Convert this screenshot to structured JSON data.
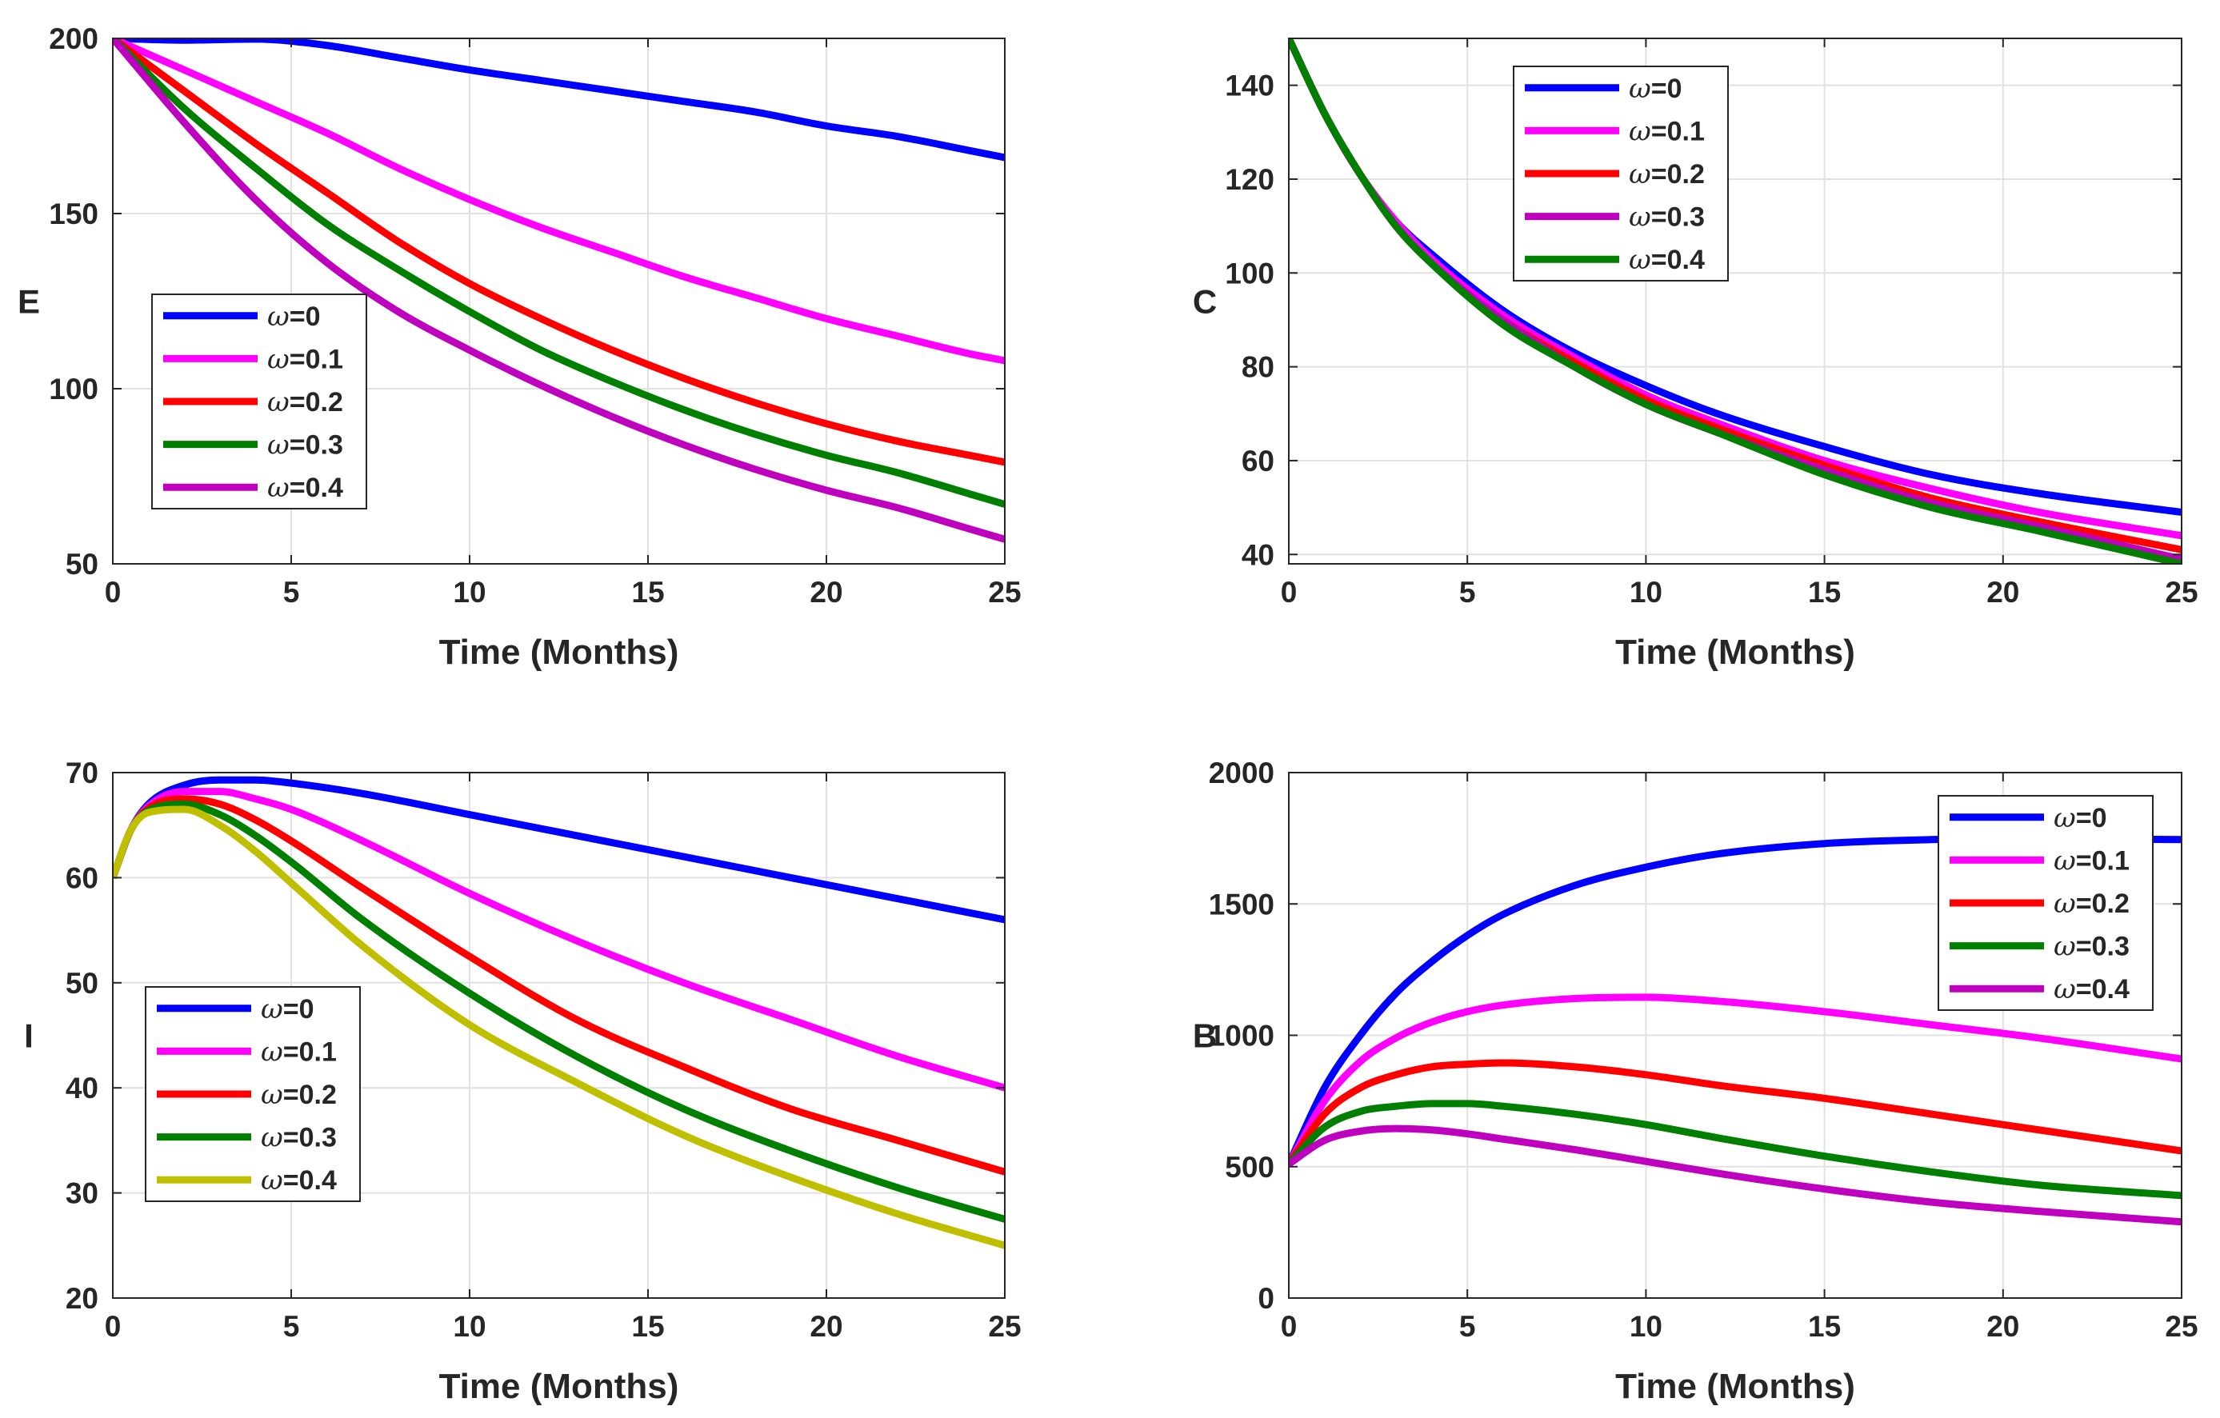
{
  "colors": {
    "blue": "#0000ff",
    "magenta": "#ff00ff",
    "red": "#ff0000",
    "green": "#007f00",
    "purple": "#bf00bf",
    "olive": "#bfbf00",
    "grid": "#e1e1e1",
    "axis": "#262626"
  },
  "chart_data": [
    {
      "type": "line",
      "panel": "top-left",
      "ylabel": "E",
      "xlabel": "Time (Months)",
      "xlim": [
        0,
        25
      ],
      "ylim": [
        50,
        200
      ],
      "xticks": [
        0,
        5,
        10,
        15,
        20,
        25
      ],
      "yticks": [
        50,
        100,
        150,
        200
      ],
      "legend_position": "center-left",
      "series": [
        {
          "name": "ω=0",
          "color": "blue",
          "x": [
            0,
            2,
            4,
            6,
            8,
            10,
            12,
            14,
            16,
            18,
            20,
            22,
            24,
            25
          ],
          "values": [
            200,
            199.5,
            199.8,
            198,
            194.5,
            191,
            188,
            185,
            182,
            179,
            175,
            172,
            168,
            166
          ]
        },
        {
          "name": "ω=0.1",
          "color": "magenta",
          "x": [
            0,
            2,
            4,
            6,
            8,
            10,
            12,
            14,
            16,
            18,
            20,
            22,
            24,
            25
          ],
          "values": [
            200,
            191,
            182,
            173,
            163,
            154,
            146,
            139,
            132,
            126,
            120,
            115,
            110,
            108
          ]
        },
        {
          "name": "ω=0.2",
          "color": "red",
          "x": [
            0,
            2,
            4,
            6,
            8,
            10,
            12,
            14,
            16,
            18,
            20,
            22,
            24,
            25
          ],
          "values": [
            200,
            185,
            170,
            156,
            142,
            130,
            120,
            111,
            103,
            96,
            90,
            85,
            81,
            79
          ]
        },
        {
          "name": "ω=0.3",
          "color": "green",
          "x": [
            0,
            2,
            4,
            6,
            8,
            10,
            12,
            14,
            16,
            18,
            20,
            22,
            24,
            25
          ],
          "values": [
            200,
            180,
            163,
            147,
            134,
            122,
            111,
            102,
            94,
            87,
            81,
            76,
            70,
            67
          ]
        },
        {
          "name": "ω=0.4",
          "color": "purple",
          "x": [
            0,
            2,
            4,
            6,
            8,
            10,
            12,
            14,
            16,
            18,
            20,
            22,
            24,
            25
          ],
          "values": [
            200,
            176,
            154,
            136,
            122,
            111,
            101,
            92,
            84,
            77,
            71,
            66,
            60,
            57
          ]
        }
      ]
    },
    {
      "type": "line",
      "panel": "top-right",
      "ylabel": "C",
      "xlabel": "Time (Months)",
      "xlim": [
        0,
        25
      ],
      "ylim": [
        38,
        150
      ],
      "xticks": [
        0,
        5,
        10,
        15,
        20,
        25
      ],
      "yticks": [
        40,
        60,
        80,
        100,
        120,
        140
      ],
      "legend_position": "top-left",
      "series": [
        {
          "name": "ω=0",
          "color": "blue",
          "x": [
            0,
            1,
            2,
            3,
            4,
            6,
            8,
            10,
            12,
            15,
            18,
            21,
            25
          ],
          "values": [
            150,
            134,
            121,
            111,
            104,
            92,
            83,
            76,
            70,
            63,
            57,
            53,
            49
          ]
        },
        {
          "name": "ω=0.1",
          "color": "magenta",
          "x": [
            0,
            1,
            2,
            3,
            4,
            6,
            8,
            10,
            12,
            15,
            18,
            21,
            25
          ],
          "values": [
            150,
            134,
            121,
            111,
            103,
            91,
            82,
            74,
            68,
            60,
            54,
            49,
            44
          ]
        },
        {
          "name": "ω=0.2",
          "color": "red",
          "x": [
            0,
            1,
            2,
            3,
            4,
            6,
            8,
            10,
            12,
            15,
            18,
            21,
            25
          ],
          "values": [
            150,
            134,
            121,
            110,
            102,
            90,
            81,
            73,
            67,
            59,
            52,
            47,
            41
          ]
        },
        {
          "name": "ω=0.3",
          "color": "purple",
          "x": [
            0,
            1,
            2,
            3,
            4,
            6,
            8,
            10,
            12,
            15,
            18,
            21,
            25
          ],
          "values": [
            150,
            134,
            121,
            110,
            102,
            90,
            80,
            72,
            66,
            58,
            51,
            46,
            39
          ]
        },
        {
          "name": "ω=0.4",
          "color": "green",
          "x": [
            0,
            1,
            2,
            3,
            4,
            6,
            8,
            10,
            12,
            15,
            18,
            21,
            25
          ],
          "values": [
            150,
            134,
            121,
            110,
            102,
            89,
            80,
            72,
            66,
            57,
            50,
            45,
            38
          ]
        }
      ]
    },
    {
      "type": "line",
      "panel": "bottom-left",
      "ylabel": "I",
      "xlabel": "Time (Months)",
      "xlim": [
        0,
        25
      ],
      "ylim": [
        20,
        70
      ],
      "xticks": [
        0,
        5,
        10,
        15,
        20,
        25
      ],
      "yticks": [
        20,
        30,
        40,
        50,
        60,
        70
      ],
      "legend_position": "center-left",
      "series": [
        {
          "name": "ω=0",
          "color": "blue",
          "x": [
            0,
            0.5,
            1,
            2,
            3,
            4,
            5,
            7,
            10,
            13,
            16,
            19,
            22,
            25
          ],
          "values": [
            60,
            64.5,
            67,
            68.8,
            69.3,
            69.3,
            69,
            68,
            66,
            64,
            62,
            60,
            58,
            56
          ]
        },
        {
          "name": "ω=0.1",
          "color": "magenta",
          "x": [
            0,
            0.5,
            1,
            2,
            3,
            4,
            5,
            7,
            10,
            13,
            16,
            19,
            22,
            25
          ],
          "values": [
            60,
            64.5,
            66.8,
            68.2,
            68.2,
            67.5,
            66.5,
            63.5,
            58.5,
            54,
            50,
            46.5,
            43,
            40
          ]
        },
        {
          "name": "ω=0.2",
          "color": "red",
          "x": [
            0,
            0.5,
            1,
            2,
            3,
            4,
            5,
            7,
            10,
            13,
            16,
            19,
            22,
            25
          ],
          "values": [
            60,
            64.5,
            66.6,
            67.5,
            67,
            65.5,
            63.5,
            59,
            52.5,
            46.5,
            42,
            38,
            35,
            32
          ]
        },
        {
          "name": "ω=0.3",
          "color": "green",
          "x": [
            0,
            0.5,
            1,
            2,
            3,
            4,
            5,
            7,
            10,
            13,
            16,
            19,
            22,
            25
          ],
          "values": [
            60,
            64.5,
            66.4,
            67,
            66,
            64,
            61.5,
            56,
            49,
            43,
            38,
            34,
            30.5,
            27.5
          ]
        },
        {
          "name": "ω=0.4",
          "color": "olive",
          "x": [
            0,
            0.5,
            1,
            2,
            3,
            4,
            5,
            7,
            10,
            13,
            16,
            19,
            22,
            25
          ],
          "values": [
            60,
            64.5,
            66.2,
            66.5,
            65,
            62.5,
            59.5,
            53.5,
            46,
            40.5,
            35.5,
            31.5,
            28,
            25
          ]
        }
      ]
    },
    {
      "type": "line",
      "panel": "bottom-right",
      "ylabel": "B",
      "xlabel": "Time (Months)",
      "xlim": [
        0,
        25
      ],
      "ylim": [
        0,
        2000
      ],
      "xticks": [
        0,
        5,
        10,
        15,
        20,
        25
      ],
      "yticks": [
        0,
        500,
        1000,
        1500,
        2000
      ],
      "legend_position": "top-right",
      "series": [
        {
          "name": "ω=0",
          "color": "blue",
          "x": [
            0,
            1,
            2,
            3,
            4,
            5,
            6,
            8,
            10,
            12,
            15,
            18,
            21,
            25
          ],
          "values": [
            510,
            800,
            1000,
            1160,
            1280,
            1380,
            1460,
            1570,
            1640,
            1690,
            1730,
            1745,
            1748,
            1745
          ]
        },
        {
          "name": "ω=0.1",
          "color": "magenta",
          "x": [
            0,
            1,
            2,
            3,
            4,
            5,
            6,
            8,
            10,
            12,
            15,
            18,
            21,
            25
          ],
          "values": [
            510,
            750,
            900,
            990,
            1050,
            1090,
            1115,
            1140,
            1145,
            1130,
            1090,
            1040,
            990,
            910
          ]
        },
        {
          "name": "ω=0.2",
          "color": "red",
          "x": [
            0,
            1,
            2,
            3,
            4,
            5,
            6,
            8,
            10,
            12,
            15,
            18,
            21,
            25
          ],
          "values": [
            510,
            700,
            800,
            850,
            880,
            890,
            895,
            880,
            850,
            810,
            760,
            700,
            640,
            560
          ]
        },
        {
          "name": "ω=0.3",
          "color": "green",
          "x": [
            0,
            1,
            2,
            3,
            4,
            5,
            6,
            8,
            10,
            12,
            15,
            18,
            21,
            25
          ],
          "values": [
            510,
            650,
            710,
            730,
            740,
            740,
            730,
            700,
            660,
            610,
            540,
            480,
            430,
            390
          ]
        },
        {
          "name": "ω=0.4",
          "color": "purple",
          "x": [
            0,
            1,
            2,
            3,
            4,
            5,
            6,
            8,
            10,
            12,
            15,
            18,
            21,
            25
          ],
          "values": [
            510,
            600,
            635,
            645,
            640,
            625,
            605,
            565,
            520,
            475,
            415,
            365,
            330,
            290
          ]
        }
      ]
    }
  ]
}
